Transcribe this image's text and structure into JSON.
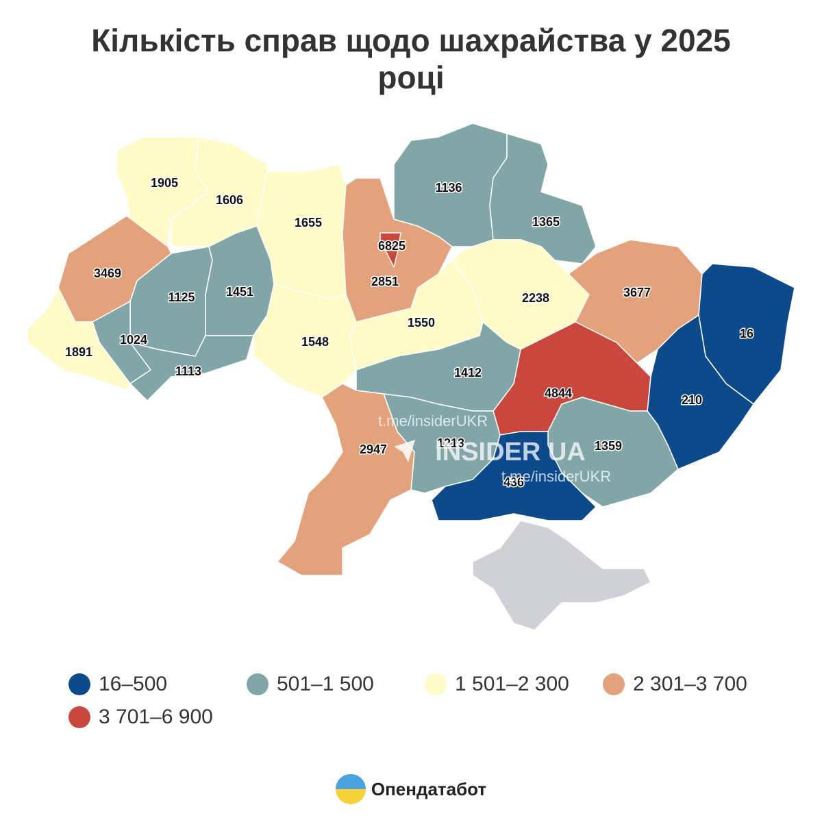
{
  "title": "Кількість справ щодо шахрайства у 2025 році",
  "regions": [
    {
      "value": 1905,
      "color": "#fffbc8"
    },
    {
      "value": 1606,
      "color": "#fffbc8"
    },
    {
      "value": 1655,
      "color": "#fffbc8"
    },
    {
      "value": 2851,
      "color": "#e3a27c"
    },
    {
      "value": 6825,
      "color": "#c9473d"
    },
    {
      "value": 1136,
      "color": "#82a6a8"
    },
    {
      "value": 1365,
      "color": "#82a6a8"
    },
    {
      "value": 3469,
      "color": "#e3a27c"
    },
    {
      "value": 1125,
      "color": "#82a6a8"
    },
    {
      "value": 1451,
      "color": "#82a6a8"
    },
    {
      "value": 1024,
      "color": "#82a6a8"
    },
    {
      "value": 1891,
      "color": "#fffbc8"
    },
    {
      "value": 1113,
      "color": "#82a6a8"
    },
    {
      "value": 1548,
      "color": "#fffbc8"
    },
    {
      "value": 1550,
      "color": "#fffbc8"
    },
    {
      "value": 2238,
      "color": "#fffbc8"
    },
    {
      "value": 3677,
      "color": "#e3a27c"
    },
    {
      "value": 16,
      "color": "#0d4a8c"
    },
    {
      "value": 210,
      "color": "#0d4a8c"
    },
    {
      "value": 4844,
      "color": "#c9473d"
    },
    {
      "value": 1412,
      "color": "#82a6a8"
    },
    {
      "value": 1213,
      "color": "#82a6a8"
    },
    {
      "value": 1359,
      "color": "#82a6a8"
    },
    {
      "value": 436,
      "color": "#0d4a8c"
    },
    {
      "value": 2947,
      "color": "#e3a27c"
    },
    {
      "color": "#d0d1d6"
    }
  ],
  "legend": [
    {
      "label": "16–500",
      "color": "#0d4a8c"
    },
    {
      "label": "501–1 500",
      "color": "#82a6a8"
    },
    {
      "label": "1 501–2 300",
      "color": "#fffbc8"
    },
    {
      "label": "2 301–3 700",
      "color": "#e3a27c"
    },
    {
      "label": "3 701–6 900",
      "color": "#c9473d"
    }
  ],
  "watermark": {
    "link": "t.me/insiderUKR",
    "brand": "INSIDER UA"
  },
  "footer": {
    "logo": "Опендатабот"
  }
}
